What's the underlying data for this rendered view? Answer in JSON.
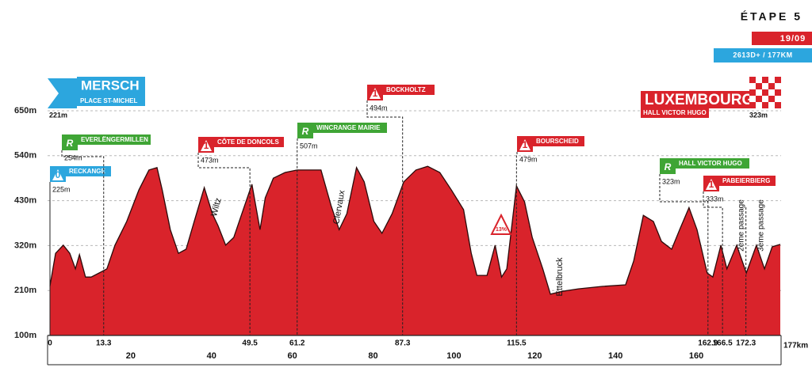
{
  "chart_data": {
    "type": "area",
    "stage": "ÉTAPE 5",
    "date": "19/09",
    "stats": "2613D+ / 177KM",
    "start": {
      "name": "MERSCH",
      "place": "PLACE ST-MICHEL",
      "altitude": "221m"
    },
    "finish": {
      "name": "LUXEMBOURG",
      "place": "HALL VICTOR HUGO",
      "altitude": "323m"
    },
    "x": [
      0,
      1.4,
      3.3,
      4.9,
      6.3,
      7.3,
      8.8,
      10.2,
      12.2,
      14.1,
      16.1,
      19,
      22,
      24.5,
      26.5,
      27.8,
      29.8,
      31.8,
      33.7,
      35.7,
      38.2,
      40.2,
      41.6,
      43.5,
      45.5,
      47.5,
      50,
      52,
      53.3,
      55.3,
      58.2,
      61.2,
      64.1,
      67.1,
      69.6,
      71.6,
      73.5,
      75.9,
      77.8,
      80.2,
      82.2,
      84.7,
      87.6,
      90.6,
      93.5,
      96.5,
      99.4,
      102.4,
      104.3,
      105.7,
      108.2,
      110.2,
      111.8,
      113.1,
      115.5,
      117.5,
      119.4,
      122,
      123.9,
      126.9,
      130.8,
      136.7,
      142.5,
      144.5,
      146.9,
      149.4,
      151.4,
      153.9,
      155.9,
      158.2,
      160.2,
      162.7,
      164.1,
      166.1,
      167.6,
      170,
      172.4,
      174.9,
      176.9,
      178.8,
      180.8
    ],
    "values": [
      221,
      301,
      321,
      301,
      263,
      298,
      243,
      243,
      253,
      263,
      321,
      379,
      456,
      505,
      511,
      456,
      359,
      301,
      311,
      379,
      462,
      398,
      369,
      321,
      340,
      398,
      470,
      359,
      437,
      485,
      499,
      505,
      505,
      505,
      418,
      359,
      398,
      511,
      476,
      379,
      350,
      398,
      476,
      505,
      514,
      499,
      456,
      408,
      301,
      247,
      247,
      321,
      243,
      263,
      466,
      427,
      340,
      263,
      201,
      208,
      214,
      220,
      224,
      282,
      394,
      379,
      330,
      311,
      359,
      413,
      359,
      253,
      243,
      321,
      263,
      321,
      253,
      321,
      263,
      317,
      323
    ],
    "color": "#d9232b",
    "line_color": "#2b0a0a",
    "xlim": [
      0,
      181
    ],
    "xticks": [
      20,
      40,
      60,
      80,
      100,
      120,
      140,
      160
    ],
    "x_end_label": "177km",
    "ylim": [
      100,
      650
    ],
    "yticks": [
      {
        "value": 650,
        "label": "650m"
      },
      {
        "value": 540,
        "label": "540m"
      },
      {
        "value": 430,
        "label": "430m"
      },
      {
        "value": 320,
        "label": "320m"
      },
      {
        "value": 210,
        "label": "210m"
      },
      {
        "value": 100,
        "label": "100m"
      }
    ],
    "grid": true,
    "km_marks": [
      0,
      13.3,
      49.5,
      61.2,
      87.3,
      115.5,
      162.9,
      166.5,
      172.3
    ],
    "points": [
      {
        "label": "RECKANGE",
        "badge": "0",
        "altitude": "225m",
        "color": "#2ca6de"
      },
      {
        "label": "EVERLËNGERMILLEN",
        "badge": "R",
        "altitude": "254m",
        "color": "#3fa535"
      },
      {
        "label": "CÔTE DE DONCOLS",
        "badge": "1",
        "altitude": "473m",
        "color": "#d9232b"
      },
      {
        "label": "WINCRANGE MAIRIE",
        "badge": "R",
        "altitude": "507m",
        "color": "#3fa535"
      },
      {
        "label": "BOCKHOLTZ",
        "badge": "1",
        "altitude": "494m",
        "color": "#d9232b"
      },
      {
        "label": "BOURSCHEID",
        "badge": "1",
        "altitude": "479m",
        "color": "#d9232b"
      },
      {
        "label": "HALL VICTOR HUGO",
        "badge": "R",
        "altitude": "323m",
        "color": "#3fa535"
      },
      {
        "label": "PABEIERBIERG",
        "badge": "1",
        "altitude": "333m",
        "color": "#d9232b"
      }
    ],
    "towns": [
      "Wiltz",
      "Clervaux",
      "Ettelbruck"
    ],
    "gradient": "13%",
    "passages": [
      "2ème passage",
      "3ème passage"
    ]
  }
}
